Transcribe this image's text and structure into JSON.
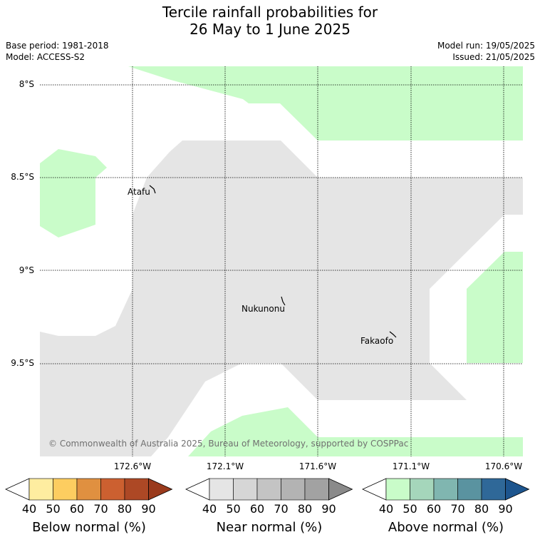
{
  "title_line1": "Tercile rainfall probabilities for",
  "title_line2": "26 May to 1 June 2025",
  "meta": {
    "base_period": "Base period: 1981-2018",
    "model": "Model: ACCESS-S2",
    "model_run": "Model run: 19/05/2025",
    "issued": "Issued: 21/05/2025"
  },
  "map": {
    "lat_labels": [
      "8°S",
      "8.5°S",
      "9°S",
      "9.5°S"
    ],
    "lon_labels": [
      "172.6°W",
      "172.1°W",
      "171.6°W",
      "171.1°W",
      "170.6°W"
    ],
    "places": [
      "Atafu",
      "Nukunonu",
      "Fakaofo"
    ],
    "copyright": "© Commonwealth of Australia 2025, Bureau of Meteorology, supported by COSPPac",
    "region_colors": {
      "near_normal_40": "#e5e5e5",
      "above_normal_40": "#c9fcc9"
    }
  },
  "colorbars": [
    {
      "label": "Below normal (%)",
      "ticks": [
        "40",
        "50",
        "60",
        "70",
        "80",
        "90"
      ],
      "colors": [
        "#ffffff",
        "#feeda0",
        "#fdcd60",
        "#e09040",
        "#cc6030",
        "#ad4825",
        "#9a3a1c"
      ]
    },
    {
      "label": "Near normal (%)",
      "ticks": [
        "40",
        "50",
        "60",
        "70",
        "80",
        "90"
      ],
      "colors": [
        "#ffffff",
        "#e5e5e5",
        "#d6d6d6",
        "#c4c4c4",
        "#b3b3b3",
        "#a2a2a2",
        "#8a8a8a"
      ]
    },
    {
      "label": "Above normal (%)",
      "ticks": [
        "40",
        "50",
        "60",
        "70",
        "80",
        "90"
      ],
      "colors": [
        "#ffffff",
        "#c9fcc9",
        "#a5d6bb",
        "#80b6b0",
        "#5a93a0",
        "#2f6898",
        "#1d558e"
      ]
    }
  ]
}
